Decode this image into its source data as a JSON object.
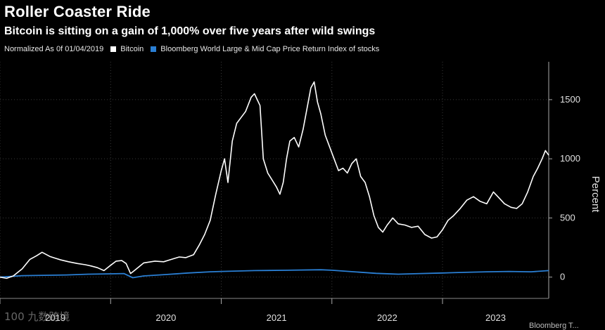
{
  "title": "Roller Coaster Ride",
  "subtitle": "Bitcoin is sitting on a gain of 1,000% over five years after wild swings",
  "legend": {
    "prefix": "Normalized As 0f 01/04/2019",
    "items": [
      {
        "label": "Bitcoin",
        "color": "#ffffff"
      },
      {
        "label": "Bloomberg World Large & Mid Cap Price Return Index of stocks",
        "color": "#2a7fd4"
      }
    ]
  },
  "watermark": "100 九数跨境",
  "source": "Bloomberg T...",
  "chart_data": {
    "type": "line",
    "ylabel": "Percent",
    "y_ticks": [
      0,
      500,
      1000,
      1500
    ],
    "ylim": [
      -180,
      1820
    ],
    "x_ticks": [
      "2019",
      "2020",
      "2021",
      "2022",
      "2023"
    ],
    "xlim": [
      2019.0,
      2023.96
    ],
    "grid": true,
    "series": [
      {
        "name": "Bitcoin",
        "color": "#ffffff",
        "points": [
          [
            2019.0,
            0
          ],
          [
            2019.06,
            -10
          ],
          [
            2019.12,
            10
          ],
          [
            2019.2,
            70
          ],
          [
            2019.27,
            150
          ],
          [
            2019.33,
            180
          ],
          [
            2019.38,
            210
          ],
          [
            2019.45,
            175
          ],
          [
            2019.5,
            160
          ],
          [
            2019.55,
            145
          ],
          [
            2019.62,
            130
          ],
          [
            2019.7,
            115
          ],
          [
            2019.77,
            105
          ],
          [
            2019.82,
            95
          ],
          [
            2019.88,
            80
          ],
          [
            2019.94,
            55
          ],
          [
            2020.0,
            100
          ],
          [
            2020.05,
            135
          ],
          [
            2020.1,
            140
          ],
          [
            2020.14,
            115
          ],
          [
            2020.18,
            30
          ],
          [
            2020.22,
            60
          ],
          [
            2020.3,
            120
          ],
          [
            2020.4,
            135
          ],
          [
            2020.48,
            130
          ],
          [
            2020.55,
            150
          ],
          [
            2020.62,
            170
          ],
          [
            2020.68,
            165
          ],
          [
            2020.75,
            190
          ],
          [
            2020.8,
            270
          ],
          [
            2020.85,
            360
          ],
          [
            2020.9,
            480
          ],
          [
            2020.95,
            700
          ],
          [
            2021.0,
            900
          ],
          [
            2021.03,
            1000
          ],
          [
            2021.06,
            800
          ],
          [
            2021.1,
            1150
          ],
          [
            2021.14,
            1300
          ],
          [
            2021.18,
            1350
          ],
          [
            2021.22,
            1400
          ],
          [
            2021.27,
            1520
          ],
          [
            2021.3,
            1550
          ],
          [
            2021.35,
            1450
          ],
          [
            2021.38,
            1000
          ],
          [
            2021.42,
            880
          ],
          [
            2021.46,
            820
          ],
          [
            2021.5,
            760
          ],
          [
            2021.53,
            700
          ],
          [
            2021.56,
            800
          ],
          [
            2021.59,
            1000
          ],
          [
            2021.62,
            1150
          ],
          [
            2021.66,
            1180
          ],
          [
            2021.7,
            1100
          ],
          [
            2021.74,
            1250
          ],
          [
            2021.78,
            1450
          ],
          [
            2021.81,
            1600
          ],
          [
            2021.84,
            1650
          ],
          [
            2021.87,
            1480
          ],
          [
            2021.9,
            1380
          ],
          [
            2021.94,
            1200
          ],
          [
            2021.98,
            1100
          ],
          [
            2022.02,
            1000
          ],
          [
            2022.06,
            900
          ],
          [
            2022.1,
            920
          ],
          [
            2022.14,
            880
          ],
          [
            2022.18,
            960
          ],
          [
            2022.22,
            1000
          ],
          [
            2022.26,
            850
          ],
          [
            2022.3,
            800
          ],
          [
            2022.34,
            680
          ],
          [
            2022.38,
            520
          ],
          [
            2022.42,
            420
          ],
          [
            2022.46,
            380
          ],
          [
            2022.5,
            440
          ],
          [
            2022.55,
            500
          ],
          [
            2022.6,
            450
          ],
          [
            2022.66,
            440
          ],
          [
            2022.72,
            420
          ],
          [
            2022.78,
            430
          ],
          [
            2022.84,
            360
          ],
          [
            2022.9,
            330
          ],
          [
            2022.95,
            340
          ],
          [
            2023.0,
            400
          ],
          [
            2023.05,
            480
          ],
          [
            2023.1,
            520
          ],
          [
            2023.16,
            580
          ],
          [
            2023.22,
            650
          ],
          [
            2023.28,
            680
          ],
          [
            2023.34,
            640
          ],
          [
            2023.4,
            620
          ],
          [
            2023.46,
            720
          ],
          [
            2023.5,
            680
          ],
          [
            2023.56,
            620
          ],
          [
            2023.62,
            590
          ],
          [
            2023.67,
            580
          ],
          [
            2023.72,
            620
          ],
          [
            2023.77,
            720
          ],
          [
            2023.82,
            850
          ],
          [
            2023.86,
            920
          ],
          [
            2023.9,
            1000
          ],
          [
            2023.93,
            1070
          ],
          [
            2023.96,
            1030
          ]
        ]
      },
      {
        "name": "Bloomberg World Large & Mid Cap Price Return Index of stocks",
        "color": "#2a7fd4",
        "points": [
          [
            2019.0,
            0
          ],
          [
            2019.2,
            12
          ],
          [
            2019.4,
            15
          ],
          [
            2019.6,
            18
          ],
          [
            2019.8,
            25
          ],
          [
            2020.0,
            28
          ],
          [
            2020.12,
            30
          ],
          [
            2020.2,
            -5
          ],
          [
            2020.3,
            10
          ],
          [
            2020.5,
            22
          ],
          [
            2020.7,
            35
          ],
          [
            2020.9,
            45
          ],
          [
            2021.0,
            48
          ],
          [
            2021.3,
            55
          ],
          [
            2021.6,
            58
          ],
          [
            2021.9,
            62
          ],
          [
            2022.0,
            58
          ],
          [
            2022.2,
            45
          ],
          [
            2022.4,
            32
          ],
          [
            2022.6,
            25
          ],
          [
            2022.8,
            30
          ],
          [
            2023.0,
            35
          ],
          [
            2023.2,
            40
          ],
          [
            2023.4,
            45
          ],
          [
            2023.6,
            48
          ],
          [
            2023.8,
            45
          ],
          [
            2023.96,
            55
          ]
        ]
      }
    ]
  }
}
